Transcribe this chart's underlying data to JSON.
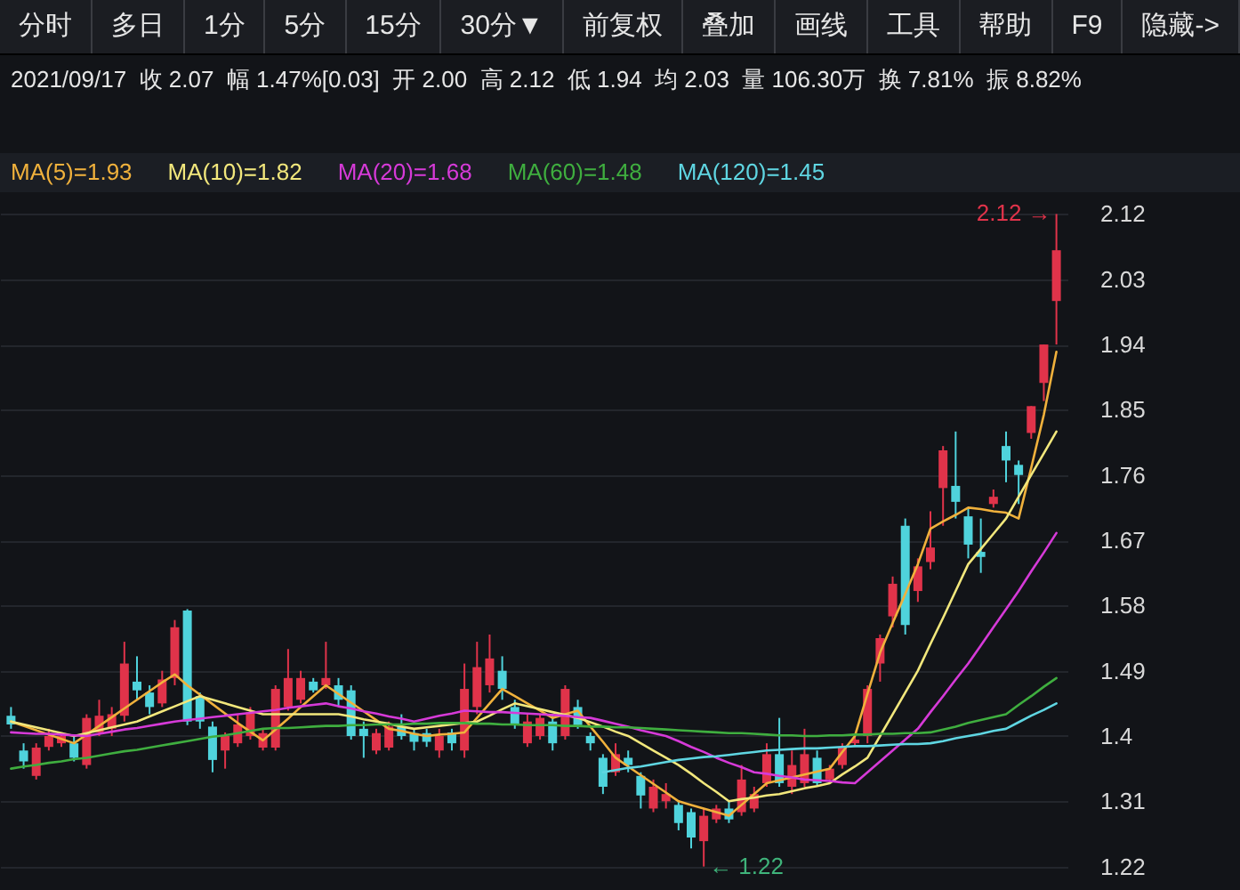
{
  "chart_data": {
    "type": "candlestick",
    "subtitle": "2021/09/17  收 2.07  幅 1.47%[0.03]  开 2.00  高 2.12  低 1.94  均 2.03  量 106.30万  换 7.81%  振 8.82%",
    "annotations": [
      "分时",
      "多日",
      "1分",
      "5分",
      "15分",
      "30分▼",
      "前复权",
      "叠加",
      "画线",
      "工具",
      "帮助",
      "F9",
      "隐藏->",
      "2.12 →",
      "← 1.22"
    ],
    "categories": [
      null,
      null,
      null,
      null,
      null,
      null,
      null,
      null,
      null,
      null,
      null,
      null,
      null,
      null,
      null,
      null,
      null,
      null,
      null,
      null,
      null,
      null,
      null,
      null,
      null,
      null,
      null,
      null,
      null,
      null,
      null,
      null,
      null,
      null,
      null,
      null,
      null,
      null,
      null,
      null,
      null,
      null,
      null,
      null,
      null,
      null,
      null,
      null,
      null,
      null,
      null,
      null,
      null,
      null,
      null,
      null,
      null,
      null,
      null,
      null,
      null,
      null,
      null,
      null,
      null,
      null,
      null,
      null,
      null,
      null,
      null,
      null,
      null,
      null,
      null,
      null,
      null,
      null,
      null,
      null,
      null,
      null,
      null,
      null
    ],
    "ohlc": [
      [
        1.428,
        1.44,
        1.41,
        1.416
      ],
      [
        1.38,
        1.39,
        1.355,
        1.365
      ],
      [
        1.345,
        1.39,
        1.34,
        1.384
      ],
      [
        1.385,
        1.41,
        1.38,
        1.4
      ],
      [
        1.39,
        1.405,
        1.385,
        1.4
      ],
      [
        1.39,
        1.4,
        1.365,
        1.37
      ],
      [
        1.36,
        1.43,
        1.355,
        1.425
      ],
      [
        1.405,
        1.45,
        1.4,
        1.428
      ],
      [
        1.41,
        1.44,
        1.4,
        1.43
      ],
      [
        1.428,
        1.53,
        1.42,
        1.5
      ],
      [
        1.475,
        1.51,
        1.45,
        1.463
      ],
      [
        1.46,
        1.47,
        1.43,
        1.44
      ],
      [
        1.445,
        1.49,
        1.44,
        1.478
      ],
      [
        1.48,
        1.56,
        1.47,
        1.55
      ],
      [
        1.573,
        1.575,
        1.415,
        1.42
      ],
      [
        1.455,
        1.46,
        1.41,
        1.42
      ],
      [
        1.413,
        1.42,
        1.35,
        1.367
      ],
      [
        1.38,
        1.405,
        1.355,
        1.4
      ],
      [
        1.39,
        1.43,
        1.385,
        1.416
      ],
      [
        1.4,
        1.44,
        1.395,
        1.433
      ],
      [
        1.384,
        1.41,
        1.38,
        1.404
      ],
      [
        1.384,
        1.47,
        1.38,
        1.465
      ],
      [
        1.44,
        1.52,
        1.435,
        1.48
      ],
      [
        1.45,
        1.49,
        1.445,
        1.48
      ],
      [
        1.475,
        1.48,
        1.46,
        1.463
      ],
      [
        1.47,
        1.53,
        1.465,
        1.48
      ],
      [
        1.47,
        1.48,
        1.44,
        1.45
      ],
      [
        1.463,
        1.47,
        1.395,
        1.4
      ],
      [
        1.41,
        1.42,
        1.37,
        1.4
      ],
      [
        1.38,
        1.41,
        1.375,
        1.404
      ],
      [
        1.384,
        1.42,
        1.38,
        1.413
      ],
      [
        1.413,
        1.43,
        1.395,
        1.4
      ],
      [
        1.404,
        1.41,
        1.38,
        1.392
      ],
      [
        1.404,
        1.41,
        1.385,
        1.392
      ],
      [
        1.38,
        1.41,
        1.37,
        1.4
      ],
      [
        1.405,
        1.41,
        1.38,
        1.39
      ],
      [
        1.38,
        1.5,
        1.37,
        1.465
      ],
      [
        1.44,
        1.53,
        1.43,
        1.495
      ],
      [
        1.47,
        1.54,
        1.46,
        1.507
      ],
      [
        1.49,
        1.51,
        1.45,
        1.465
      ],
      [
        1.44,
        1.45,
        1.41,
        1.415
      ],
      [
        1.39,
        1.43,
        1.385,
        1.42
      ],
      [
        1.4,
        1.43,
        1.395,
        1.425
      ],
      [
        1.42,
        1.43,
        1.38,
        1.39
      ],
      [
        1.4,
        1.47,
        1.395,
        1.465
      ],
      [
        1.44,
        1.45,
        1.41,
        1.415
      ],
      [
        1.4,
        1.405,
        1.38,
        1.39
      ],
      [
        1.37,
        1.375,
        1.32,
        1.33
      ],
      [
        1.35,
        1.39,
        1.345,
        1.375
      ],
      [
        1.37,
        1.38,
        1.35,
        1.36
      ],
      [
        1.345,
        1.35,
        1.3,
        1.318
      ],
      [
        1.3,
        1.34,
        1.295,
        1.33
      ],
      [
        1.31,
        1.335,
        1.3,
        1.32
      ],
      [
        1.305,
        1.31,
        1.27,
        1.28
      ],
      [
        1.295,
        1.3,
        1.245,
        1.26
      ],
      [
        1.255,
        1.3,
        1.22,
        1.29
      ],
      [
        1.285,
        1.305,
        1.28,
        1.3
      ],
      [
        1.3,
        1.31,
        1.28,
        1.285
      ],
      [
        1.295,
        1.36,
        1.29,
        1.34
      ],
      [
        1.3,
        1.33,
        1.295,
        1.32
      ],
      [
        1.335,
        1.39,
        1.33,
        1.375
      ],
      [
        1.375,
        1.425,
        1.33,
        1.335
      ],
      [
        1.33,
        1.38,
        1.32,
        1.36
      ],
      [
        1.335,
        1.41,
        1.33,
        1.375
      ],
      [
        1.37,
        1.38,
        1.33,
        1.335
      ],
      [
        1.34,
        1.36,
        1.335,
        1.355
      ],
      [
        1.36,
        1.39,
        1.355,
        1.385
      ],
      [
        1.39,
        1.4,
        1.385,
        1.395
      ],
      [
        1.4,
        1.47,
        1.39,
        1.465
      ],
      [
        1.5,
        1.54,
        1.475,
        1.535
      ],
      [
        1.565,
        1.62,
        1.55,
        1.61
      ],
      [
        1.69,
        1.7,
        1.54,
        1.553
      ],
      [
        1.6,
        1.645,
        1.585,
        1.634
      ],
      [
        1.64,
        1.71,
        1.63,
        1.66
      ],
      [
        1.742,
        1.8,
        1.69,
        1.794
      ],
      [
        1.745,
        1.82,
        1.7,
        1.723
      ],
      [
        1.703,
        1.715,
        1.645,
        1.664
      ],
      [
        1.654,
        1.7,
        1.625,
        1.647
      ],
      [
        1.72,
        1.74,
        1.715,
        1.73
      ],
      [
        1.8,
        1.82,
        1.75,
        1.78
      ],
      [
        1.774,
        1.78,
        1.72,
        1.76
      ],
      [
        1.818,
        1.855,
        1.81,
        1.855
      ],
      [
        1.887,
        1.94,
        1.862,
        1.94
      ],
      [
        2.0,
        2.12,
        1.94,
        2.07
      ]
    ],
    "colors": [
      "#4fd3dc",
      "#4fd3dc",
      "#e0334a",
      "#e0334a",
      "#e0334a",
      "#4fd3dc",
      "#e0334a",
      "#e0334a",
      "#e0334a",
      "#e0334a",
      "#4fd3dc",
      "#4fd3dc",
      "#e0334a",
      "#e0334a",
      "#4fd3dc",
      "#4fd3dc",
      "#4fd3dc",
      "#e0334a",
      "#e0334a",
      "#e0334a",
      "#e0334a",
      "#e0334a",
      "#e0334a",
      "#e0334a",
      "#4fd3dc",
      "#e0334a",
      "#4fd3dc",
      "#4fd3dc",
      "#4fd3dc",
      "#e0334a",
      "#e0334a",
      "#4fd3dc",
      "#4fd3dc",
      "#4fd3dc",
      "#e0334a",
      "#4fd3dc",
      "#e0334a",
      "#e0334a",
      "#e0334a",
      "#4fd3dc",
      "#4fd3dc",
      "#e0334a",
      "#e0334a",
      "#4fd3dc",
      "#e0334a",
      "#4fd3dc",
      "#4fd3dc",
      "#4fd3dc",
      "#e0334a",
      "#4fd3dc",
      "#4fd3dc",
      "#e0334a",
      "#e0334a",
      "#4fd3dc",
      "#4fd3dc",
      "#e0334a",
      "#e0334a",
      "#4fd3dc",
      "#e0334a",
      "#e0334a",
      "#e0334a",
      "#4fd3dc",
      "#e0334a",
      "#e0334a",
      "#4fd3dc",
      "#e0334a",
      "#e0334a",
      "#e0334a",
      "#e0334a",
      "#e0334a",
      "#e0334a",
      "#4fd3dc",
      "#e0334a",
      "#e0334a",
      "#e0334a",
      "#4fd3dc",
      "#4fd3dc",
      "#4fd3dc",
      "#e0334a",
      "#4fd3dc",
      "#4fd3dc",
      "#e0334a",
      "#e0334a",
      "#e0334a"
    ],
    "series": [
      {
        "name": "MA(5)=1.93",
        "type": "line",
        "color": "#f0b13c",
        "values": [
          1.42,
          1.414,
          1.408,
          1.402,
          1.396,
          1.39,
          1.402,
          1.414,
          1.426,
          1.438,
          1.45,
          1.462,
          1.474,
          1.485,
          1.47,
          1.457,
          1.444,
          1.431,
          1.418,
          1.406,
          1.394,
          1.409,
          1.424,
          1.44,
          1.455,
          1.47,
          1.458,
          1.446,
          1.434,
          1.422,
          1.41,
          1.407,
          1.403,
          1.4,
          1.402,
          1.403,
          1.405,
          1.425,
          1.445,
          1.465,
          1.455,
          1.445,
          1.435,
          1.425,
          1.43,
          1.435,
          1.413,
          1.392,
          1.37,
          1.358,
          1.346,
          1.334,
          1.322,
          1.31,
          1.305,
          1.3,
          1.295,
          1.29,
          1.305,
          1.32,
          1.335,
          1.339,
          1.343,
          1.347,
          1.351,
          1.355,
          1.378,
          1.4,
          1.458,
          1.515,
          1.556,
          1.596,
          1.637,
          1.686,
          1.696,
          1.705,
          1.715,
          1.713,
          1.71,
          1.708,
          1.7,
          1.77,
          1.843,
          1.93
        ]
      },
      {
        "name": "MA(10)=1.82",
        "type": "line",
        "color": "#f2e77c",
        "values": [
          1.42,
          1.416,
          1.412,
          1.408,
          1.404,
          1.4,
          1.404,
          1.408,
          1.412,
          1.416,
          1.42,
          1.427,
          1.434,
          1.441,
          1.448,
          1.455,
          1.45,
          1.445,
          1.44,
          1.435,
          1.43,
          1.43,
          1.43,
          1.43,
          1.43,
          1.43,
          1.43,
          1.427,
          1.423,
          1.42,
          1.417,
          1.413,
          1.41,
          1.412,
          1.414,
          1.416,
          1.418,
          1.42,
          1.428,
          1.437,
          1.445,
          1.441,
          1.437,
          1.433,
          1.429,
          1.425,
          1.419,
          1.413,
          1.406,
          1.4,
          1.39,
          1.38,
          1.37,
          1.36,
          1.348,
          1.335,
          1.323,
          1.31,
          1.313,
          1.315,
          1.318,
          1.32,
          1.324,
          1.328,
          1.331,
          1.335,
          1.347,
          1.358,
          1.37,
          1.4,
          1.43,
          1.46,
          1.49,
          1.527,
          1.563,
          1.6,
          1.637,
          1.658,
          1.679,
          1.7,
          1.73,
          1.76,
          1.79,
          1.82
        ]
      },
      {
        "name": "MA(20)=1.68",
        "type": "line",
        "color": "#d63ad8",
        "values": [
          1.405,
          1.404,
          1.403,
          1.403,
          1.402,
          1.401,
          1.4,
          1.403,
          1.406,
          1.409,
          1.411,
          1.414,
          1.417,
          1.42,
          1.422,
          1.424,
          1.426,
          1.428,
          1.43,
          1.432,
          1.434,
          1.436,
          1.439,
          1.441,
          1.443,
          1.445,
          1.441,
          1.438,
          1.434,
          1.431,
          1.427,
          1.424,
          1.42,
          1.424,
          1.428,
          1.431,
          1.435,
          1.434,
          1.433,
          1.433,
          1.432,
          1.431,
          1.43,
          1.429,
          1.428,
          1.426,
          1.425,
          1.421,
          1.417,
          1.413,
          1.408,
          1.404,
          1.4,
          1.393,
          1.385,
          1.378,
          1.37,
          1.363,
          1.357,
          1.35,
          1.348,
          1.345,
          1.343,
          1.34,
          1.339,
          1.338,
          1.336,
          1.335,
          1.35,
          1.365,
          1.38,
          1.395,
          1.41,
          1.433,
          1.455,
          1.478,
          1.5,
          1.525,
          1.55,
          1.575,
          1.6,
          1.627,
          1.653,
          1.68
        ]
      },
      {
        "name": "MA(60)=1.48",
        "type": "line",
        "color": "#3fae3f",
        "values": [
          1.355,
          1.358,
          1.36,
          1.363,
          1.365,
          1.368,
          1.37,
          1.373,
          1.376,
          1.379,
          1.381,
          1.384,
          1.387,
          1.39,
          1.393,
          1.396,
          1.399,
          1.401,
          1.404,
          1.407,
          1.41,
          1.411,
          1.411,
          1.412,
          1.413,
          1.414,
          1.414,
          1.415,
          1.415,
          1.416,
          1.416,
          1.416,
          1.417,
          1.417,
          1.418,
          1.418,
          1.418,
          1.417,
          1.417,
          1.416,
          1.416,
          1.415,
          1.415,
          1.415,
          1.414,
          1.414,
          1.413,
          1.413,
          1.412,
          1.412,
          1.411,
          1.41,
          1.409,
          1.408,
          1.407,
          1.406,
          1.405,
          1.404,
          1.404,
          1.403,
          1.402,
          1.401,
          1.401,
          1.4,
          1.4,
          1.401,
          1.401,
          1.402,
          1.402,
          1.403,
          1.403,
          1.404,
          1.404,
          1.405,
          1.409,
          1.413,
          1.418,
          1.422,
          1.426,
          1.43,
          1.443,
          1.455,
          1.468,
          1.48
        ]
      },
      {
        "name": "MA(120)=1.45",
        "type": "line",
        "color": "#5fd6e2",
        "values": [
          null,
          null,
          null,
          null,
          null,
          null,
          null,
          null,
          null,
          null,
          null,
          null,
          null,
          null,
          null,
          null,
          null,
          null,
          null,
          null,
          null,
          null,
          null,
          null,
          null,
          null,
          null,
          null,
          null,
          null,
          null,
          null,
          null,
          null,
          null,
          null,
          null,
          null,
          null,
          null,
          null,
          null,
          null,
          null,
          null,
          null,
          null,
          1.35,
          1.353,
          1.356,
          1.358,
          1.361,
          1.364,
          1.367,
          1.369,
          1.371,
          1.372,
          1.374,
          1.376,
          1.378,
          1.38,
          1.381,
          1.382,
          1.383,
          1.383,
          1.384,
          1.385,
          1.386,
          1.386,
          1.387,
          1.388,
          1.389,
          1.389,
          1.39,
          1.393,
          1.397,
          1.4,
          1.403,
          1.407,
          1.41,
          1.419,
          1.428,
          1.436,
          1.445
        ]
      }
    ],
    "ylim": [
      1.195,
      2.15
    ],
    "yticks": [
      1.22,
      1.31,
      1.4,
      1.49,
      1.58,
      1.67,
      1.76,
      1.85,
      1.94,
      2.03,
      2.12
    ],
    "grid": "y",
    "legend": "top left",
    "tick_labels": "y"
  }
}
